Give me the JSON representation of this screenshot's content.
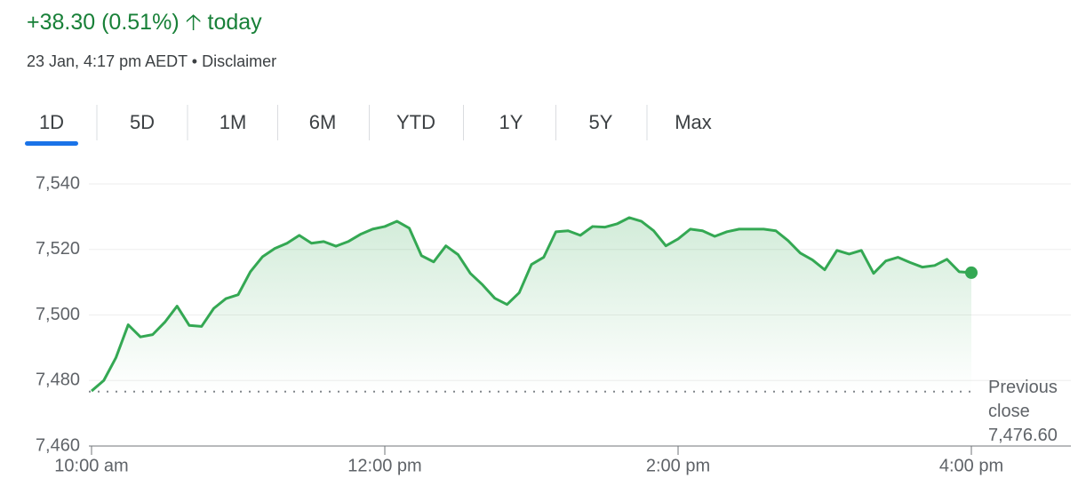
{
  "header": {
    "change": "+38.30 (0.51%)",
    "period": "today",
    "timestamp": "23 Jan, 4:17 pm AEDT",
    "separator": "•",
    "disclaimer": "Disclaimer"
  },
  "tabs": [
    "1D",
    "5D",
    "1M",
    "6M",
    "YTD",
    "1Y",
    "5Y",
    "Max"
  ],
  "selected_tab": "1D",
  "chart_data": {
    "type": "line",
    "color": "#34a853",
    "grid": true,
    "x": [
      600,
      605,
      610,
      615,
      620,
      625,
      630,
      635,
      640,
      645,
      650,
      655,
      660,
      665,
      670,
      675,
      680,
      685,
      690,
      695,
      700,
      705,
      710,
      715,
      720,
      725,
      730,
      735,
      740,
      745,
      750,
      755,
      760,
      765,
      770,
      775,
      780,
      785,
      790,
      795,
      800,
      805,
      810,
      815,
      820,
      825,
      830,
      835,
      840,
      845,
      850,
      855,
      860,
      865,
      870,
      875,
      880,
      885,
      890,
      895,
      900,
      905,
      910,
      915,
      920,
      925,
      930,
      935,
      940,
      945,
      950,
      955,
      960
    ],
    "values": [
      7476.8,
      7480,
      7487,
      7497,
      7493.3,
      7494,
      7497.8,
      7502.7,
      7496.8,
      7496.5,
      7502,
      7505,
      7506.2,
      7513.2,
      7517.8,
      7520.3,
      7521.9,
      7524.3,
      7521.9,
      7522.4,
      7521,
      7522.4,
      7524.6,
      7526.2,
      7527,
      7528.6,
      7526.5,
      7518.1,
      7516.2,
      7521.1,
      7518.4,
      7512.7,
      7509.2,
      7505.1,
      7503.2,
      7506.8,
      7515.4,
      7517.6,
      7525.4,
      7525.7,
      7524.3,
      7527,
      7526.8,
      7527.8,
      7529.7,
      7528.6,
      7525.7,
      7521.1,
      7523.2,
      7526.2,
      7525.7,
      7524,
      7525.4,
      7526.2,
      7526.2,
      7526.2,
      7525.7,
      7522.7,
      7518.9,
      7516.8,
      7513.8,
      7519.7,
      7518.6,
      7519.7,
      7512.7,
      7516.5,
      7517.6,
      7516,
      7514.6,
      7515.1,
      7517,
      7513.2,
      7512.9
    ],
    "xlim": [
      600,
      1000
    ],
    "xticks": [
      {
        "value": 600,
        "label": "10:00 am"
      },
      {
        "value": 720,
        "label": "12:00 pm"
      },
      {
        "value": 840,
        "label": "2:00 pm"
      },
      {
        "value": 960,
        "label": "4:00 pm"
      }
    ],
    "ylim": [
      7460,
      7540
    ],
    "yticks": [
      {
        "value": 7460,
        "label": "7,460"
      },
      {
        "value": 7480,
        "label": "7,480"
      },
      {
        "value": 7500,
        "label": "7,500"
      },
      {
        "value": 7520,
        "label": "7,520"
      },
      {
        "value": 7540,
        "label": "7,540"
      }
    ],
    "reference": {
      "label": "Previous close",
      "value": 7476.6,
      "value_label": "7,476.60"
    }
  }
}
